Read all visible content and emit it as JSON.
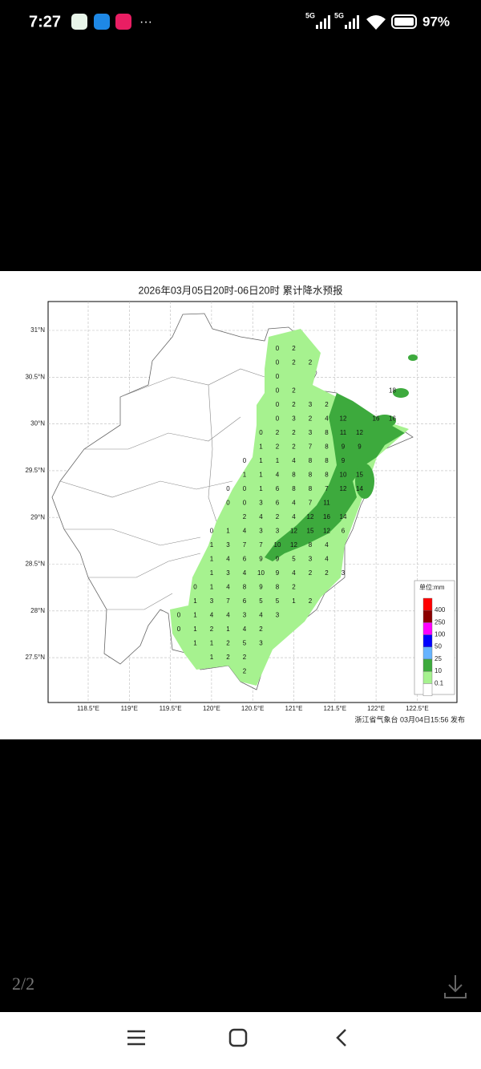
{
  "status_bar": {
    "time": "7:27",
    "network": [
      "5G",
      "5G"
    ],
    "battery": "97%"
  },
  "image": {
    "title": "2026年03月05日20时-06日20时 累计降水预报",
    "lat_labels": [
      "31°N",
      "30.5°N",
      "30°N",
      "29.5°N",
      "29°N",
      "28.5°N",
      "28°N",
      "27.5°N"
    ],
    "lon_labels": [
      "118.5°E",
      "119°E",
      "119.5°E",
      "120°E",
      "120.5°E",
      "121°E",
      "121.5°E",
      "122°E",
      "122.5°E"
    ],
    "grid_values": [
      [
        null,
        null,
        null,
        null,
        null,
        null,
        0,
        2
      ],
      [
        null,
        null,
        null,
        null,
        null,
        null,
        0,
        2,
        2
      ],
      [
        null,
        null,
        null,
        null,
        null,
        null,
        0
      ],
      [
        null,
        null,
        null,
        null,
        null,
        null,
        0,
        2,
        null,
        null,
        null,
        null,
        null,
        18
      ],
      [
        null,
        null,
        null,
        null,
        null,
        null,
        0,
        2,
        3,
        2
      ],
      [
        null,
        null,
        null,
        null,
        null,
        null,
        0,
        3,
        2,
        4,
        12,
        null,
        16,
        16
      ],
      [
        null,
        null,
        null,
        null,
        null,
        0,
        2,
        2,
        3,
        8,
        11,
        12
      ],
      [
        null,
        null,
        null,
        null,
        null,
        1,
        2,
        2,
        7,
        8,
        9,
        9
      ],
      [
        null,
        null,
        null,
        null,
        0,
        1,
        1,
        4,
        8,
        8,
        9
      ],
      [
        null,
        null,
        null,
        null,
        1,
        1,
        4,
        8,
        8,
        8,
        10,
        15
      ],
      [
        null,
        null,
        null,
        0,
        0,
        1,
        6,
        8,
        8,
        7,
        12,
        14
      ],
      [
        null,
        null,
        null,
        0,
        0,
        3,
        6,
        4,
        7,
        11
      ],
      [
        null,
        null,
        null,
        null,
        2,
        4,
        2,
        4,
        12,
        16,
        14
      ],
      [
        null,
        null,
        0,
        1,
        4,
        3,
        3,
        12,
        15,
        12,
        6
      ],
      [
        null,
        null,
        1,
        3,
        7,
        7,
        10,
        12,
        8,
        4
      ],
      [
        null,
        null,
        1,
        4,
        6,
        9,
        9,
        5,
        3,
        4
      ],
      [
        null,
        null,
        1,
        3,
        4,
        10,
        9,
        4,
        2,
        2,
        3
      ],
      [
        null,
        0,
        1,
        4,
        8,
        9,
        8,
        2
      ],
      [
        null,
        1,
        3,
        7,
        6,
        5,
        5,
        1,
        2
      ],
      [
        0,
        1,
        4,
        4,
        3,
        4,
        3
      ],
      [
        0,
        1,
        2,
        1,
        4,
        2
      ],
      [
        null,
        1,
        1,
        2,
        5,
        3
      ],
      [
        null,
        null,
        1,
        2,
        2
      ],
      [
        null,
        null,
        null,
        null,
        2
      ]
    ],
    "legend": {
      "title": "单位:mm",
      "labels": [
        "400",
        "250",
        "100",
        "50",
        "25",
        "10",
        "0.1"
      ],
      "colors": [
        "#ff0000",
        "#8b0000",
        "#ff00ff",
        "#0000ff",
        "#66b3ff",
        "#3daa3d",
        "#a6f28f",
        "#ffffff"
      ]
    },
    "footer": "浙江省气象台 03月04日15:56 发布"
  },
  "viewer": {
    "page_indicator": "2/2"
  }
}
